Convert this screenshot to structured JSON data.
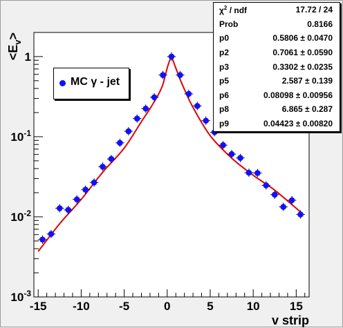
{
  "chart_data": {
    "type": "scatter",
    "xlabel": "v strip",
    "ylabel": "<E_v>",
    "xlim": [
      -15.5,
      16.5
    ],
    "ylim": [
      0.001,
      2
    ],
    "yscale": "log",
    "xticks": [
      "-15",
      "-10",
      "-5",
      "0",
      "5",
      "10",
      "15"
    ],
    "yticks": [
      "10-3",
      "10-2",
      "10-1",
      "1"
    ],
    "grid": false,
    "legend_position": "top-left",
    "series": [
      {
        "name": "MC γ - jet",
        "color": "#1010ff",
        "x": [
          -14.5,
          -13.5,
          -12.5,
          -11.5,
          -10.5,
          -9.5,
          -8.5,
          -7.5,
          -6.5,
          -5.5,
          -4.5,
          -3.5,
          -2.5,
          -1.5,
          -0.5,
          0.5,
          1.5,
          2.5,
          3.5,
          4.5,
          5.5,
          6.5,
          7.5,
          8.5,
          9.5,
          10.5,
          11.5,
          12.5,
          13.5,
          14.5,
          15.5
        ],
        "y": [
          0.0052,
          0.0061,
          0.0128,
          0.0122,
          0.0165,
          0.0218,
          0.0268,
          0.0422,
          0.0527,
          0.0838,
          0.1169,
          0.1684,
          0.2243,
          0.3103,
          0.5884,
          1.0,
          0.5884,
          0.3421,
          0.2419,
          0.1585,
          0.1137,
          0.0784,
          0.0607,
          0.0543,
          0.0355,
          0.0352,
          0.0247,
          0.0189,
          0.0133,
          0.0161,
          0.0107
        ],
        "xerr": 0.5
      },
      {
        "name": "fit",
        "type": "line",
        "color": "#e00000",
        "x": [
          -15,
          -12.5,
          -10,
          -7.5,
          -5,
          -3,
          -2,
          -1,
          -0.5,
          0,
          0.3,
          0.5,
          0.7,
          1,
          1.5,
          2,
          3,
          5,
          7.5,
          10,
          12.5,
          15.5
        ],
        "y": [
          0.0037,
          0.0082,
          0.0165,
          0.036,
          0.072,
          0.154,
          0.224,
          0.34,
          0.45,
          0.72,
          0.9,
          0.98,
          0.88,
          0.72,
          0.52,
          0.39,
          0.232,
          0.103,
          0.054,
          0.033,
          0.0215,
          0.0115
        ]
      }
    ]
  },
  "legend": {
    "label": "MC γ - jet"
  },
  "stats": [
    {
      "name": "χ2 / ndf",
      "value": "17.72 / 24"
    },
    {
      "name": "Prob",
      "value": "0.8166"
    },
    {
      "name": "p0",
      "value": "0.5806 ± 0.0470"
    },
    {
      "name": "p2",
      "value": "0.7061 ± 0.0590"
    },
    {
      "name": "p3",
      "value": "0.3302 ± 0.0235"
    },
    {
      "name": "p5",
      "value": "2.587 ± 0.139"
    },
    {
      "name": "p6",
      "value": "0.08098 ± 0.00956"
    },
    {
      "name": "p8",
      "value": "6.865 ± 0.287"
    },
    {
      "name": "p9",
      "value": "0.04423 ± 0.00820"
    }
  ]
}
